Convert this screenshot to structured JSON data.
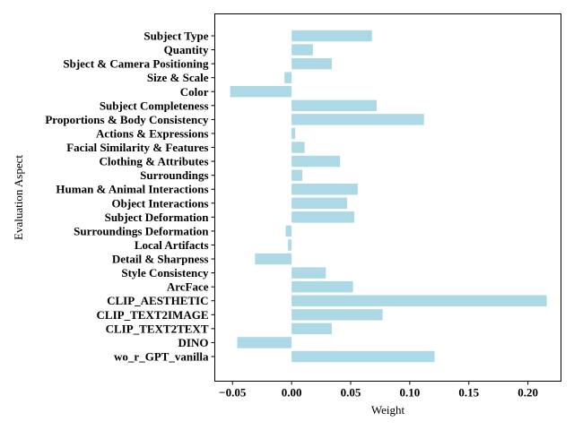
{
  "chart_data": {
    "type": "bar",
    "orientation": "horizontal",
    "xlabel": "Weight",
    "ylabel": "Evaluation Aspect",
    "xlim": [
      -0.065,
      0.228
    ],
    "xticks": [
      -0.05,
      0.0,
      0.05,
      0.1,
      0.15,
      0.2
    ],
    "xtick_labels": [
      "−0.05",
      "0.00",
      "0.05",
      "0.10",
      "0.15",
      "0.20"
    ],
    "categories": [
      "Subject Type",
      "Quantity",
      "Sbject & Camera Positioning",
      "Size & Scale",
      "Color",
      "Subject Completeness",
      "Proportions & Body Consistency",
      "Actions & Expressions",
      "Facial Similarity & Features",
      "Clothing & Attributes",
      "Surroundings",
      "Human & Animal Interactions",
      "Object Interactions",
      "Subject Deformation",
      "Surroundings Deformation",
      "Local Artifacts",
      "Detail & Sharpness",
      "Style Consistency",
      "ArcFace",
      "CLIP_AESTHETIC",
      "CLIP_TEXT2IMAGE",
      "CLIP_TEXT2TEXT",
      "DINO",
      "wo_r_GPT_vanilla"
    ],
    "values": [
      0.068,
      0.018,
      0.034,
      -0.006,
      -0.052,
      0.072,
      0.112,
      0.003,
      0.011,
      0.041,
      0.009,
      0.056,
      0.047,
      0.053,
      -0.005,
      -0.003,
      -0.031,
      0.029,
      0.052,
      0.216,
      0.077,
      0.034,
      -0.046,
      0.121
    ],
    "bar_color": "#add8e6"
  }
}
